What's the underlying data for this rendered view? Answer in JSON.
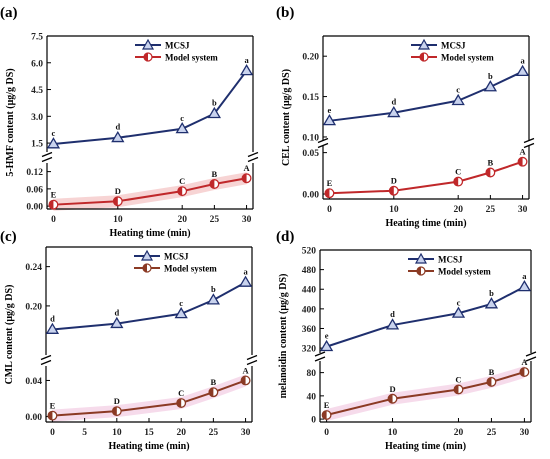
{
  "colors": {
    "mcsj": "#1f2f6e",
    "mcsj_fill": "#c9d3ee",
    "model_bc": "#c0282a",
    "model_d": "#8b3a24",
    "band_a": "#f5c9c9",
    "band_c": "#f4d2e6",
    "band_d": "#f4d2e6"
  },
  "chart_data": [
    {
      "type": "line",
      "panel_label": "(a)",
      "xlabel": "Heating time (min)",
      "ylabel": "5-HMF content (μg/g DS)",
      "x": [
        0,
        10,
        20,
        25,
        30
      ],
      "xticks": [
        "0",
        "10",
        "20",
        "25",
        "30"
      ],
      "upper": {
        "ylim": [
          1.0,
          7.5
        ],
        "ticks": [
          "1.5",
          "3.0",
          "4.5",
          "6.0",
          "7.5"
        ],
        "tick_values": [
          1.5,
          3.0,
          4.5,
          6.0,
          7.5
        ]
      },
      "lower": {
        "ylim": [
          -0.01,
          0.15
        ],
        "ticks": [
          "0.00",
          "0.06",
          "0.12"
        ],
        "tick_values": [
          0.0,
          0.06,
          0.12
        ]
      },
      "series": [
        {
          "name": "MCSJ",
          "values": [
            1.45,
            1.8,
            2.3,
            3.15,
            5.55
          ],
          "labels": [
            "c",
            "d",
            "c",
            "b",
            "a"
          ]
        },
        {
          "name": "Model system",
          "values": [
            0.005,
            0.017,
            0.052,
            0.077,
            0.097
          ],
          "labels": [
            "E",
            "D",
            "C",
            "B",
            "A"
          ]
        }
      ]
    },
    {
      "type": "line",
      "panel_label": "(b)",
      "xlabel": "Heating time (min)",
      "ylabel": "CEL content (μg/g DS)",
      "x": [
        0,
        10,
        20,
        25,
        30
      ],
      "xticks": [
        "0",
        "10",
        "20",
        "25",
        "30"
      ],
      "upper": {
        "ylim": [
          0.095,
          0.225
        ],
        "ticks": [
          "0.10",
          "0.15",
          "0.20"
        ],
        "tick_values": [
          0.1,
          0.15,
          0.2
        ]
      },
      "lower": {
        "ylim": [
          -0.006,
          0.058
        ],
        "ticks": [
          "0.00",
          "0.05"
        ],
        "tick_values": [
          0.0,
          0.05
        ]
      },
      "series": [
        {
          "name": "MCSJ",
          "values": [
            0.12,
            0.13,
            0.145,
            0.162,
            0.181
          ],
          "labels": [
            "e",
            "d",
            "c",
            "b",
            "a"
          ]
        },
        {
          "name": "Model system",
          "values": [
            0.001,
            0.004,
            0.015,
            0.026,
            0.039
          ],
          "labels": [
            "E",
            "D",
            "C",
            "B",
            "A"
          ]
        }
      ]
    },
    {
      "type": "line",
      "panel_label": "(c)",
      "xlabel": "Heating time (min)",
      "ylabel": "CML content (μg/g DS)",
      "x": [
        0,
        10,
        20,
        25,
        30
      ],
      "xticks": [
        "0",
        "5",
        "10",
        "15",
        "20",
        "25",
        "30"
      ],
      "xtick_values": [
        0,
        5,
        10,
        15,
        20,
        25,
        30
      ],
      "upper": {
        "ylim": [
          0.15,
          0.26
        ],
        "ticks": [
          "0.20",
          "0.24"
        ],
        "tick_values": [
          0.2,
          0.24
        ]
      },
      "lower": {
        "ylim": [
          -0.006,
          0.056
        ],
        "ticks": [
          "0.00",
          "0.04"
        ],
        "tick_values": [
          0.0,
          0.04
        ]
      },
      "series": [
        {
          "name": "MCSJ",
          "values": [
            0.176,
            0.182,
            0.192,
            0.206,
            0.224
          ],
          "labels": [
            "d",
            "d",
            "c",
            "b",
            "a"
          ]
        },
        {
          "name": "Model system",
          "values": [
            0.001,
            0.006,
            0.015,
            0.027,
            0.04
          ],
          "labels": [
            "E",
            "D",
            "C",
            "B",
            "A"
          ]
        }
      ]
    },
    {
      "type": "line",
      "panel_label": "(d)",
      "xlabel": "Heating time (min)",
      "ylabel": "melanoidin content (μg/g DS)",
      "x": [
        0,
        10,
        20,
        25,
        30
      ],
      "xticks": [
        "0",
        "10",
        "20",
        "25",
        "30"
      ],
      "upper": {
        "ylim": [
          310,
          520
        ],
        "ticks": [
          "320",
          "360",
          "400",
          "440",
          "480",
          "520"
        ],
        "tick_values": [
          320,
          360,
          400,
          440,
          480,
          520
        ]
      },
      "lower": {
        "ylim": [
          -5,
          100
        ],
        "ticks": [
          "0",
          "40",
          "80"
        ],
        "tick_values": [
          0,
          40,
          80
        ]
      },
      "series": [
        {
          "name": "MCSJ",
          "values": [
            323,
            367,
            391,
            410,
            445
          ],
          "labels": [
            "e",
            "d",
            "c",
            "b",
            "a"
          ]
        },
        {
          "name": "Model system",
          "values": [
            7,
            35,
            51,
            64,
            81
          ],
          "labels": [
            "E",
            "D",
            "C",
            "B",
            "A"
          ]
        }
      ]
    }
  ]
}
